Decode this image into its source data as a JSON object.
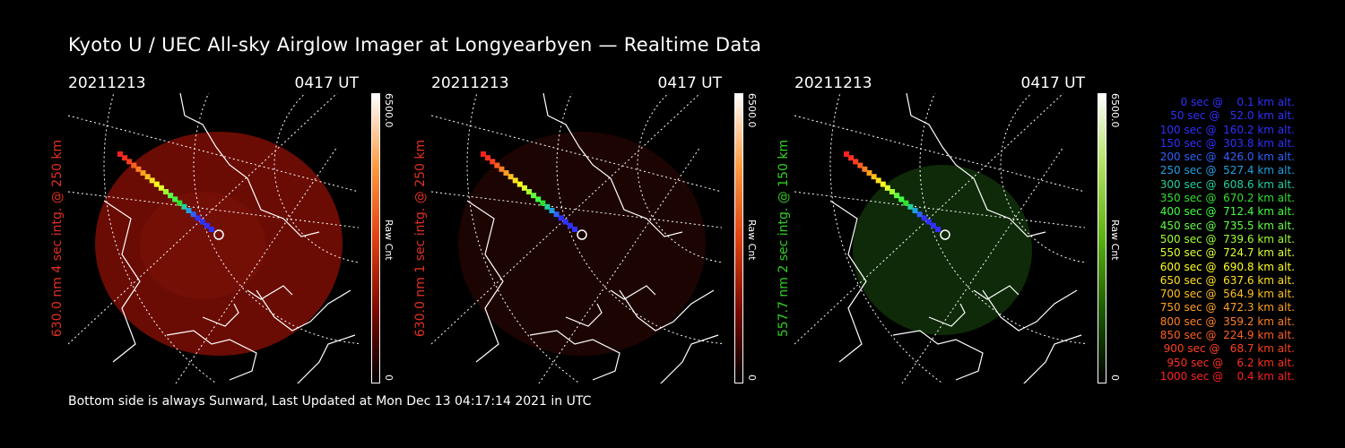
{
  "title": "Kyoto U / UEC All-sky Airglow Imager at Longyearbyen — Realtime Data",
  "footer": "Bottom side is always Sunward, Last Updated at Mon Dec 13 04:17:14 2021 in UTC",
  "panels": [
    {
      "date": "20211213",
      "time": "0417 UT",
      "ylabel": "630.0 nm 4 sec intg. @ 250 km",
      "ylabel_color": "#e03020",
      "cbar_max": "6500.0",
      "cbar_min": "0",
      "cbar_unit": "Raw Cnt",
      "theme": "red"
    },
    {
      "date": "20211213",
      "time": "0417 UT",
      "ylabel": "630.0 nm 1 sec intg. @ 250 km",
      "ylabel_color": "#e03020",
      "cbar_max": "6500.0",
      "cbar_min": "0",
      "cbar_unit": "Raw Cnt",
      "theme": "darkred"
    },
    {
      "date": "20211213",
      "time": "0417 UT",
      "ylabel": "557.7 nm 2 sec intg. @ 150 km",
      "ylabel_color": "#30d020",
      "cbar_max": "6500.0",
      "cbar_min": "0",
      "cbar_unit": "Raw Cnt",
      "theme": "green"
    }
  ],
  "legend": [
    {
      "text": "   0 sec @    0.1 km alt.",
      "color": "#3030ff"
    },
    {
      "text": "  50 sec @   52.0 km alt.",
      "color": "#3030ff"
    },
    {
      "text": " 100 sec @  160.2 km alt.",
      "color": "#3030ff"
    },
    {
      "text": " 150 sec @  303.8 km alt.",
      "color": "#3030ff"
    },
    {
      "text": " 200 sec @  426.0 km alt.",
      "color": "#3060ff"
    },
    {
      "text": " 250 sec @  527.4 km alt.",
      "color": "#20a0e0"
    },
    {
      "text": " 300 sec @  608.6 km alt.",
      "color": "#20d0a0"
    },
    {
      "text": " 350 sec @  670.2 km alt.",
      "color": "#30e030"
    },
    {
      "text": " 400 sec @  712.4 km alt.",
      "color": "#40ff40"
    },
    {
      "text": " 450 sec @  735.5 km alt.",
      "color": "#60ff40"
    },
    {
      "text": " 500 sec @  739.6 km alt.",
      "color": "#a0ff30"
    },
    {
      "text": " 550 sec @  724.7 km alt.",
      "color": "#e0ff30"
    },
    {
      "text": " 600 sec @  690.8 km alt.",
      "color": "#ffff20"
    },
    {
      "text": " 650 sec @  637.6 km alt.",
      "color": "#ffe020"
    },
    {
      "text": " 700 sec @  564.9 km alt.",
      "color": "#ffc020"
    },
    {
      "text": " 750 sec @  472.3 km alt.",
      "color": "#ffa020"
    },
    {
      "text": " 800 sec @  359.2 km alt.",
      "color": "#ff8020"
    },
    {
      "text": " 850 sec @  224.9 km alt.",
      "color": "#ff6020"
    },
    {
      "text": " 900 sec @   68.7 km alt.",
      "color": "#ff4020"
    },
    {
      "text": " 950 sec @    6.2 km alt.",
      "color": "#ff3020"
    },
    {
      "text": "1000 sec @    0.4 km alt.",
      "color": "#ff2020"
    }
  ]
}
